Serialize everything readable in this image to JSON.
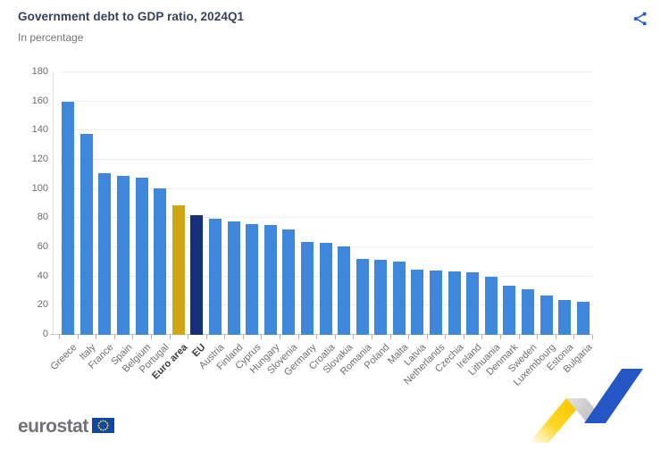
{
  "header": {
    "title": "Government debt to GDP ratio, 2024Q1",
    "subtitle": "In percentage"
  },
  "icons": {
    "share": "share-nodes-icon",
    "eu_flag": "eu-flag-icon"
  },
  "colors": {
    "bar_default": "#3e87da",
    "bar_euro_area": "#d2a517",
    "bar_eu": "#14307a",
    "share_icon": "#2458c8",
    "title_text": "#36415a",
    "flag_blue": "#0d47a8",
    "flag_stars": "#ffd617",
    "ribbon_yellow": "#fdcf00",
    "ribbon_gray": "#c9c9c9",
    "ribbon_blue": "#2456c6"
  },
  "chart_data": {
    "type": "bar",
    "title": "Government debt to GDP ratio, 2024Q1",
    "subtitle": "In percentage",
    "unit": "%",
    "ylim": [
      0,
      180
    ],
    "ytick_step": 20,
    "grid": true,
    "legend": "none",
    "categories": [
      "Greece",
      "Italy",
      "France",
      "Spain",
      "Belgium",
      "Portugal",
      "Euro area",
      "EU",
      "Austria",
      "Finland",
      "Cyprus",
      "Hungary",
      "Slovenia",
      "Germany",
      "Croatia",
      "Slovakia",
      "Romania",
      "Poland",
      "Malta",
      "Latvia",
      "Netherlands",
      "Czechia",
      "Ireland",
      "Lithuania",
      "Denmark",
      "Sweden",
      "Luxembourg",
      "Estonia",
      "Bulgaria"
    ],
    "values": [
      159.8,
      137.7,
      110.8,
      108.9,
      108.0,
      100.4,
      88.7,
      82.0,
      79.7,
      77.8,
      75.8,
      75.3,
      72.0,
      63.6,
      63.2,
      60.7,
      51.8,
      51.5,
      50.4,
      44.5,
      43.9,
      43.5,
      42.9,
      39.9,
      33.6,
      31.0,
      27.0,
      23.8,
      22.7
    ],
    "bar_colors": {
      "default": "#3e87da",
      "Euro area": "#d2a517",
      "EU": "#14307a"
    },
    "bold_categories": [
      "Euro area",
      "EU"
    ]
  },
  "footer": {
    "logo_text": "eurostat"
  }
}
